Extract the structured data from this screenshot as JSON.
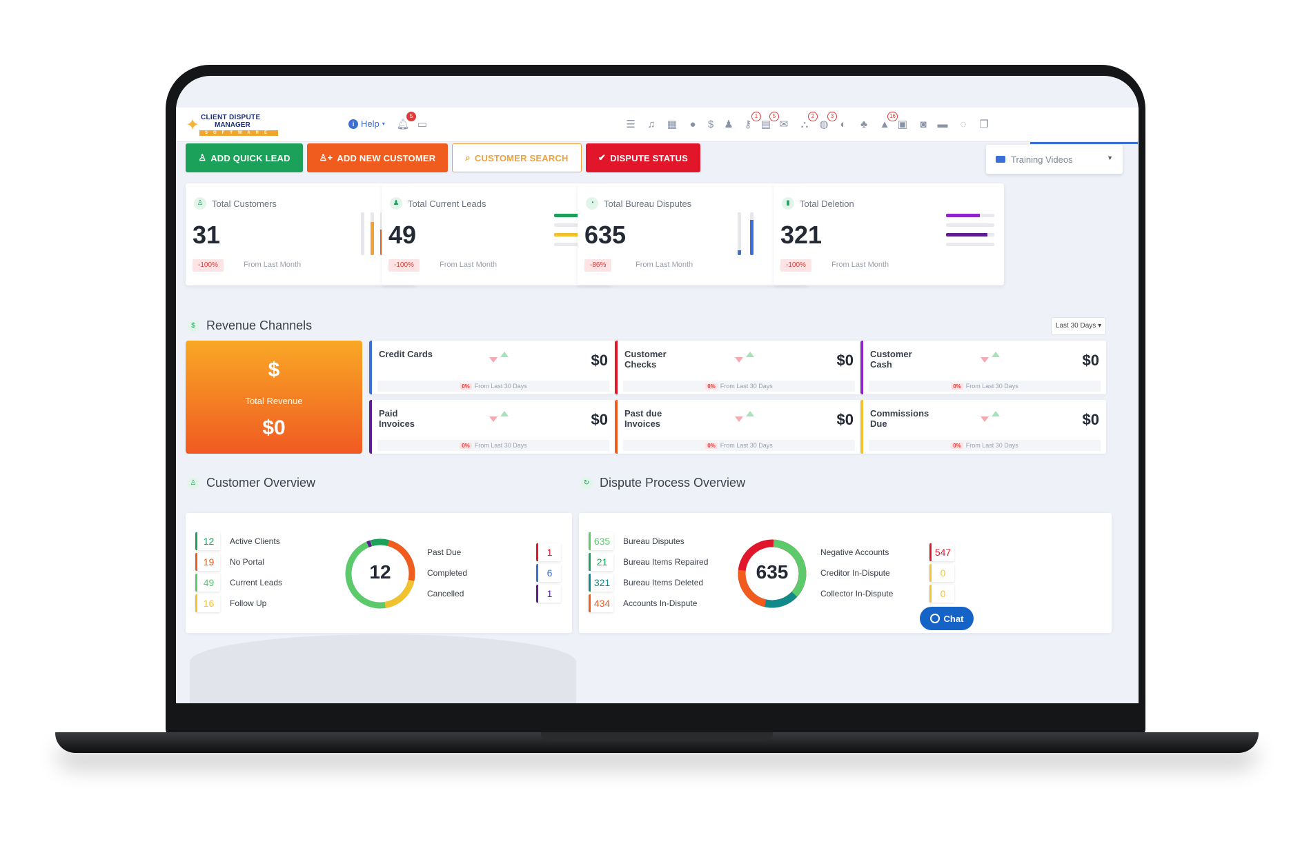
{
  "header": {
    "logo": {
      "line1": "CLIENT DISPUTE",
      "line2": "MANAGER",
      "line3": "SOFTWARE"
    },
    "help_label": "Help",
    "help_badge": "5",
    "badges": [
      "1",
      "5",
      "2",
      "3",
      "16"
    ]
  },
  "actions": {
    "add_quick_lead": "ADD QUICK LEAD",
    "add_new_customer": "ADD NEW CUSTOMER",
    "customer_search": "CUSTOMER SEARCH",
    "dispute_status": "DISPUTE STATUS",
    "training_videos": "Training Videos"
  },
  "stats": [
    {
      "label": "Total Customers",
      "value": "31",
      "change": "-100%",
      "from": "From Last Month"
    },
    {
      "label": "Total Current Leads",
      "value": "49",
      "change": "-100%",
      "from": "From Last Month"
    },
    {
      "label": "Total Bureau Disputes",
      "value": "635",
      "change": "-86%",
      "from": "From Last Month"
    },
    {
      "label": "Total Deletion",
      "value": "321",
      "change": "-100%",
      "from": "From Last Month"
    }
  ],
  "revenue": {
    "title": "Revenue Channels",
    "range": "Last 30 Days",
    "total_label": "Total Revenue",
    "total_value": "$0",
    "channels": [
      {
        "label": "Credit Cards",
        "value": "$0",
        "pct": "0%",
        "from": "From Last 30 Days",
        "color": "#3b6fd8"
      },
      {
        "label": "Customer Checks",
        "value": "$0",
        "pct": "0%",
        "from": "From Last 30 Days",
        "color": "#e2162a"
      },
      {
        "label": "Customer Cash",
        "value": "$0",
        "pct": "0%",
        "from": "From Last 30 Days",
        "color": "#8e24c9"
      },
      {
        "label": "Paid Invoices",
        "value": "$0",
        "pct": "0%",
        "from": "From Last 30 Days",
        "color": "#5e1d8f"
      },
      {
        "label": "Past due Invoices",
        "value": "$0",
        "pct": "0%",
        "from": "From Last 30 Days",
        "color": "#ef5c1e"
      },
      {
        "label": "Commissions Due",
        "value": "$0",
        "pct": "0%",
        "from": "From Last 30 Days",
        "color": "#f2c12e"
      }
    ]
  },
  "customer_overview": {
    "title": "Customer Overview",
    "left": [
      {
        "value": "12",
        "label": "Active Clients",
        "color": "#1ba159"
      },
      {
        "value": "19",
        "label": "No Portal",
        "color": "#ef5c1e"
      },
      {
        "value": "49",
        "label": "Current Leads",
        "color": "#5cc96b"
      },
      {
        "value": "16",
        "label": "Follow Up",
        "color": "#f2c12e"
      }
    ],
    "donut_value": "12",
    "right": [
      {
        "label": "Past Due",
        "value": "1",
        "color": "#e2162a"
      },
      {
        "label": "Completed",
        "value": "6",
        "color": "#3b6fd8"
      },
      {
        "label": "Cancelled",
        "value": "1",
        "color": "#5e1d8f"
      }
    ]
  },
  "dispute_overview": {
    "title": "Dispute Process Overview",
    "left": [
      {
        "value": "635",
        "label": "Bureau Disputes",
        "color": "#5cc96b"
      },
      {
        "value": "21",
        "label": "Bureau Items Repaired",
        "color": "#1ba159"
      },
      {
        "value": "321",
        "label": "Bureau Items Deleted",
        "color": "#138a8a"
      },
      {
        "value": "434",
        "label": "Accounts In-Dispute",
        "color": "#ef5c1e"
      }
    ],
    "donut_value": "635",
    "right": [
      {
        "label": "Negative Accounts",
        "value": "547",
        "color": "#e2162a"
      },
      {
        "label": "Creditor In-Dispute",
        "value": "0",
        "color": "#f2c12e"
      },
      {
        "label": "Collector In-Dispute",
        "value": "0",
        "color": "#f2c12e"
      }
    ]
  },
  "chat_label": "Chat"
}
